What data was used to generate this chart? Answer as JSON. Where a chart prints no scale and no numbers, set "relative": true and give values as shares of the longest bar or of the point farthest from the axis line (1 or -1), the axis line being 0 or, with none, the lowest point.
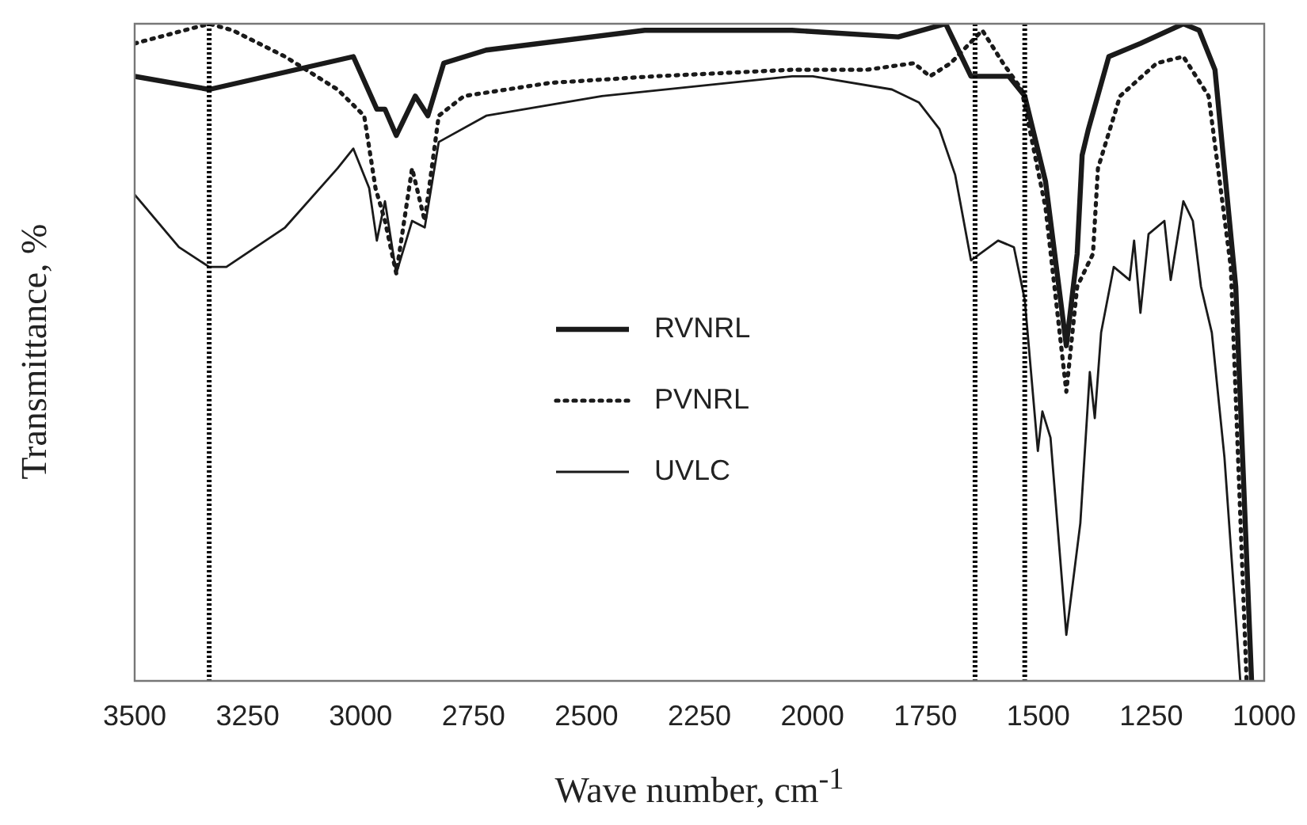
{
  "chart_data": {
    "type": "line",
    "relative": true,
    "xlabel": "Wave number, cm$^{-1}$",
    "ylabel": "Transmittance, %",
    "xlim": [
      3500,
      1000
    ],
    "xticks": [
      3500,
      3250,
      3000,
      2750,
      2500,
      2250,
      2000,
      1750,
      1500,
      1250,
      1000
    ],
    "grid": false,
    "legend": "center",
    "marker": "none",
    "tick_labels": "x",
    "ref_lines": [
      {
        "axis": "x",
        "value": 3335,
        "color": "#000000",
        "line_style": "dotted"
      },
      {
        "axis": "x",
        "value": 1640,
        "color": "#000000",
        "line_style": "dotted"
      },
      {
        "axis": "x",
        "value": 1530,
        "color": "#000000",
        "line_style": "dotted"
      }
    ],
    "series": [
      {
        "name": "RVNRL",
        "color": "#1a1a1a",
        "line_style": "solid",
        "x": [
          3500,
          3335,
          3016,
          2964,
          2946,
          2921,
          2879,
          2851,
          2816,
          2722,
          2371,
          2290,
          2045,
          1810,
          1705,
          1670,
          1649,
          1565,
          1530,
          1484,
          1438,
          1414,
          1403,
          1389,
          1344,
          1274,
          1179,
          1144,
          1109,
          1063,
          1028
        ],
        "values": [
          0.92,
          0.9,
          0.95,
          0.87,
          0.87,
          0.83,
          0.89,
          0.86,
          0.94,
          0.96,
          0.99,
          0.99,
          0.99,
          0.98,
          1.0,
          0.95,
          0.92,
          0.92,
          0.89,
          0.76,
          0.51,
          0.65,
          0.8,
          0.84,
          0.95,
          0.97,
          1.0,
          0.99,
          0.93,
          0.6,
          0
        ]
      },
      {
        "name": "PVNRL",
        "color": "#1a1a1a",
        "line_style": "dotted",
        "x": [
          3500,
          3335,
          3283,
          3167,
          3051,
          2992,
          2967,
          2946,
          2921,
          2886,
          2858,
          2827,
          2771,
          2581,
          2350,
          2045,
          1880,
          1775,
          1740,
          1694,
          1624,
          1578,
          1537,
          1484,
          1438,
          1414,
          1379,
          1368,
          1319,
          1238,
          1179,
          1123,
          1074,
          1039
        ],
        "values": [
          0.97,
          1.0,
          0.99,
          0.95,
          0.9,
          0.86,
          0.75,
          0.7,
          0.62,
          0.78,
          0.7,
          0.86,
          0.89,
          0.91,
          0.92,
          0.93,
          0.93,
          0.94,
          0.92,
          0.94,
          0.99,
          0.94,
          0.9,
          0.72,
          0.44,
          0.6,
          0.65,
          0.78,
          0.89,
          0.94,
          0.95,
          0.89,
          0.63,
          0
        ]
      },
      {
        "name": "UVLC",
        "color": "#1a1a1a",
        "line_style": "solid",
        "x": [
          3500,
          3402,
          3335,
          3297,
          3167,
          3051,
          3016,
          2981,
          2964,
          2946,
          2921,
          2886,
          2858,
          2827,
          2722,
          2466,
          2045,
          1999,
          1824,
          1764,
          1719,
          1684,
          1649,
          1589,
          1554,
          1530,
          1501,
          1491,
          1473,
          1438,
          1407,
          1386,
          1375,
          1361,
          1333,
          1298,
          1288,
          1274,
          1256,
          1221,
          1207,
          1179,
          1158,
          1140,
          1116,
          1088,
          1053
        ],
        "values": [
          0.74,
          0.66,
          0.63,
          0.63,
          0.69,
          0.78,
          0.81,
          0.75,
          0.67,
          0.73,
          0.62,
          0.7,
          0.69,
          0.82,
          0.86,
          0.89,
          0.92,
          0.92,
          0.9,
          0.88,
          0.84,
          0.77,
          0.64,
          0.67,
          0.66,
          0.58,
          0.35,
          0.41,
          0.37,
          0.07,
          0.24,
          0.47,
          0.4,
          0.53,
          0.63,
          0.61,
          0.67,
          0.56,
          0.68,
          0.7,
          0.61,
          0.73,
          0.7,
          0.6,
          0.53,
          0.34,
          0
        ]
      }
    ]
  }
}
